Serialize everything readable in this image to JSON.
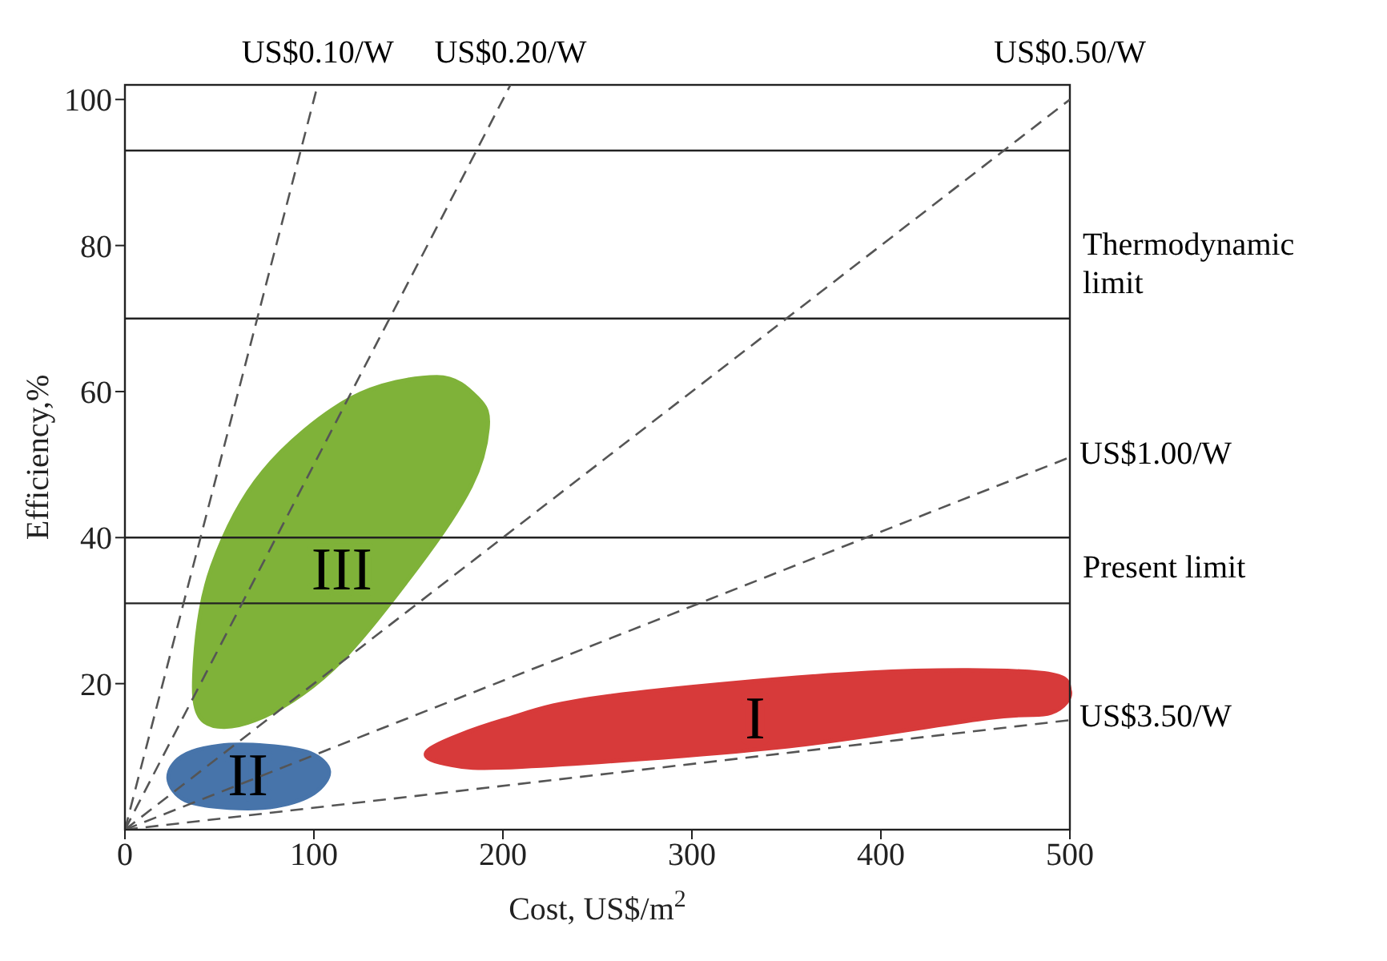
{
  "chart_data": {
    "type": "line",
    "xlabel": "Cost, US$/m$^{2}$",
    "ylabel": "Efficiency,%",
    "xlim": [
      0,
      500
    ],
    "xticks": [
      0,
      100,
      200,
      300,
      400,
      500
    ],
    "ylim": [
      0,
      102
    ],
    "yticks": [
      20,
      40,
      60,
      80,
      100
    ],
    "line_style": "dashed",
    "series": [
      {
        "name": "US$0.10/W",
        "color": "#555555",
        "x": [
          0,
          102
        ],
        "values": [
          0,
          102
        ]
      },
      {
        "name": "US$0.20/W",
        "color": "#555555",
        "x": [
          0,
          204
        ],
        "values": [
          0,
          102
        ]
      },
      {
        "name": "US$0.50/W",
        "color": "#555555",
        "x": [
          0,
          500
        ],
        "values": [
          0,
          100
        ]
      },
      {
        "name": "US$1.00/W",
        "color": "#555555",
        "x": [
          0,
          500
        ],
        "values": [
          0,
          51
        ]
      },
      {
        "name": "US$3.50/W",
        "color": "#555555",
        "x": [
          0,
          500
        ],
        "values": [
          0,
          15
        ]
      },
      {
        "name": "III",
        "type": "area",
        "color": "#8dc63f",
        "x": [
          192,
          183,
          155,
          110,
          69,
          41,
          37,
          46,
          73,
          119,
          165,
          187
        ],
        "values": [
          55,
          47,
          36,
          22,
          15,
          15,
          23,
          36,
          49,
          59,
          62,
          59
        ]
      },
      {
        "name": "II",
        "type": "area",
        "color": "#4f81bd",
        "x": [
          23,
          30,
          50,
          75,
          98,
          108,
          100,
          80,
          55,
          32
        ],
        "values": [
          7,
          10,
          11.5,
          11.5,
          10.5,
          8,
          5,
          3.2,
          3,
          4
        ]
      },
      {
        "name": "I",
        "type": "area",
        "color": "#ef4040",
        "x": [
          161,
          200,
          256,
          393,
          484,
          500,
          490,
          457,
          347,
          210,
          170
        ],
        "values": [
          11,
          15,
          18.3,
          21.5,
          21.5,
          19,
          16,
          15.3,
          11.3,
          8.6,
          9
        ]
      }
    ],
    "ref_lines": [
      {
        "axis": "y",
        "value": 93
      },
      {
        "axis": "y",
        "value": 70,
        "label": "Thermodynamic limit"
      },
      {
        "axis": "y",
        "value": 40
      },
      {
        "axis": "y",
        "value": 31,
        "label": "Present limit"
      }
    ]
  }
}
